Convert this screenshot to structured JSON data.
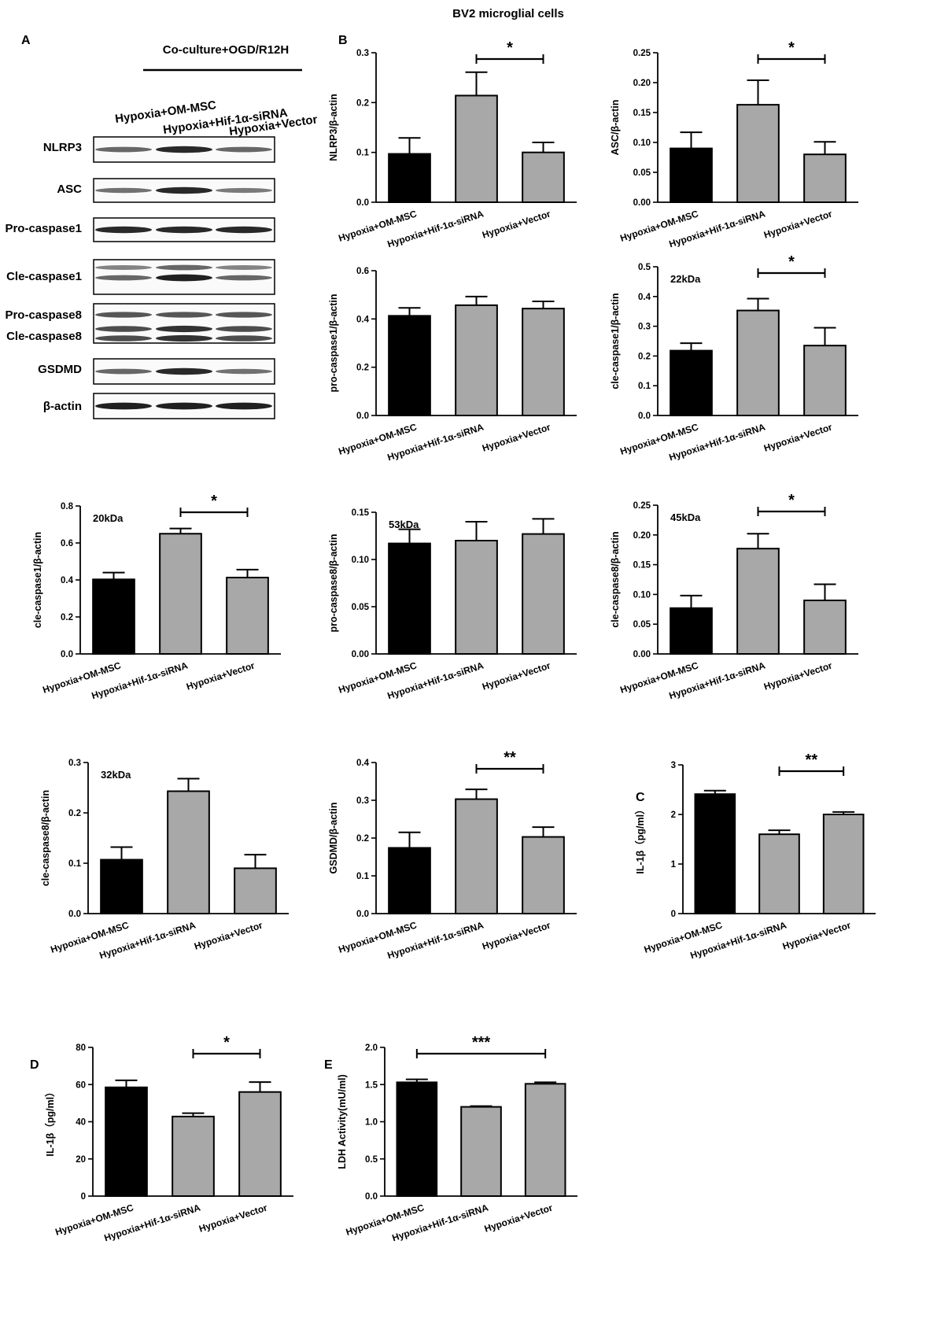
{
  "figure_title": "BV2 microglial cells",
  "panel_letters": {
    "A": "A",
    "B": "B",
    "C": "C",
    "D": "D",
    "E": "E"
  },
  "blot": {
    "condition_label": "Co-culture+OGD/R12H",
    "lanes": [
      "Hypoxia+OM-MSC",
      "Hypoxia+Hif-1α-siRNA",
      "Hypoxia+Vector"
    ],
    "rows": [
      {
        "label": "NLRP3",
        "bands": [
          [
            0.55,
            0.9,
            0.55
          ]
        ]
      },
      {
        "label": "ASC",
        "bands": [
          [
            0.5,
            0.9,
            0.45
          ]
        ]
      },
      {
        "label": "Pro-caspase1",
        "bands": [
          [
            0.9,
            0.9,
            0.9
          ]
        ]
      },
      {
        "label": "Cle-caspase1",
        "bands": [
          [
            0.4,
            0.55,
            0.4
          ],
          [
            0.55,
            0.95,
            0.55
          ]
        ]
      },
      {
        "label": "Pro-caspase8",
        "bands": [
          [
            0.65,
            0.65,
            0.65
          ],
          [
            0.35,
            0.4,
            0.4
          ]
        ]
      },
      {
        "label": "Cle-caspase8",
        "bands": [
          [
            0.7,
            0.85,
            0.7
          ]
        ]
      },
      {
        "label": "GSDMD",
        "bands": [
          [
            0.55,
            0.9,
            0.5
          ]
        ]
      },
      {
        "label": "β-actin",
        "bands": [
          [
            0.95,
            0.95,
            0.95
          ]
        ]
      }
    ]
  },
  "colors": {
    "bar1": "#000000",
    "bar_other": "#a8a8a8",
    "axis": "#000000"
  },
  "chart_data": [
    {
      "id": "nlrp3",
      "type": "bar",
      "panel": "B",
      "categories": [
        "Hypoxia+OM-MSC",
        "Hypoxia+Hif-1α-siRNA",
        "Hypoxia+Vector"
      ],
      "values": [
        0.097,
        0.214,
        0.1
      ],
      "errors": [
        0.032,
        0.047,
        0.02
      ],
      "ylabel": "NLRP3/β-actin",
      "ylim": [
        0,
        0.3
      ],
      "yticks": [
        "0.0",
        "0.1",
        "0.2",
        "0.3"
      ],
      "annotation": "",
      "significance": {
        "label": "*",
        "from": 1,
        "to": 2
      }
    },
    {
      "id": "asc",
      "type": "bar",
      "categories": [
        "Hypoxia+OM-MSC",
        "Hypoxia+Hif-1α-siRNA",
        "Hypoxia+Vector"
      ],
      "values": [
        0.09,
        0.163,
        0.08
      ],
      "errors": [
        0.027,
        0.041,
        0.021
      ],
      "ylabel": "ASC/β-actin",
      "ylim": [
        0,
        0.25
      ],
      "yticks": [
        "0.00",
        "0.05",
        "0.10",
        "0.15",
        "0.20",
        "0.25"
      ],
      "annotation": "",
      "significance": {
        "label": "*",
        "from": 1,
        "to": 2
      }
    },
    {
      "id": "procasp1",
      "type": "bar",
      "categories": [
        "Hypoxia+OM-MSC",
        "Hypoxia+Hif-1α-siRNA",
        "Hypoxia+Vector"
      ],
      "values": [
        0.413,
        0.457,
        0.443
      ],
      "errors": [
        0.033,
        0.036,
        0.03
      ],
      "ylabel": "pro-caspase1/β-actin",
      "ylim": [
        0,
        0.6
      ],
      "yticks": [
        "0.0",
        "0.2",
        "0.4",
        "0.6"
      ],
      "annotation": "",
      "significance": null
    },
    {
      "id": "clecasp1_22",
      "type": "bar",
      "categories": [
        "Hypoxia+OM-MSC",
        "Hypoxia+Hif-1α-siRNA",
        "Hypoxia+Vector"
      ],
      "values": [
        0.218,
        0.353,
        0.235
      ],
      "errors": [
        0.025,
        0.04,
        0.06
      ],
      "ylabel": "cle-caspase1/β-actin",
      "ylim": [
        0,
        0.5
      ],
      "yticks": [
        "0.0",
        "0.1",
        "0.2",
        "0.3",
        "0.4",
        "0.5"
      ],
      "annotation": "22kDa",
      "significance": {
        "label": "*",
        "from": 1,
        "to": 2
      }
    },
    {
      "id": "clecasp1_20",
      "type": "bar",
      "categories": [
        "Hypoxia+OM-MSC",
        "Hypoxia+Hif-1α-siRNA",
        "Hypoxia+Vector"
      ],
      "values": [
        0.403,
        0.65,
        0.413
      ],
      "errors": [
        0.037,
        0.028,
        0.043
      ],
      "ylabel": "cle-caspase1/β-actin",
      "ylim": [
        0,
        0.8
      ],
      "yticks": [
        "0.0",
        "0.2",
        "0.4",
        "0.6",
        "0.8"
      ],
      "annotation": "20kDa",
      "significance": {
        "label": "*",
        "from": 1,
        "to": 2
      }
    },
    {
      "id": "procasp8",
      "type": "bar",
      "categories": [
        "Hypoxia+OM-MSC",
        "Hypoxia+Hif-1α-siRNA",
        "Hypoxia+Vector"
      ],
      "values": [
        0.117,
        0.12,
        0.127
      ],
      "errors": [
        0.015,
        0.02,
        0.016
      ],
      "ylabel": "pro-caspase8/β-actin",
      "ylim": [
        0,
        0.15
      ],
      "yticks": [
        "0.00",
        "0.05",
        "0.10",
        "0.15"
      ],
      "annotation": "53kDa",
      "significance": null
    },
    {
      "id": "clecasp8_45",
      "type": "bar",
      "categories": [
        "Hypoxia+OM-MSC",
        "Hypoxia+Hif-1α-siRNA",
        "Hypoxia+Vector"
      ],
      "values": [
        0.077,
        0.177,
        0.09
      ],
      "errors": [
        0.021,
        0.025,
        0.027
      ],
      "ylabel": "cle-caspase8/β-actin",
      "ylim": [
        0,
        0.25
      ],
      "yticks": [
        "0.00",
        "0.05",
        "0.10",
        "0.15",
        "0.20",
        "0.25"
      ],
      "annotation": "45kDa",
      "significance": {
        "label": "*",
        "from": 1,
        "to": 2
      }
    },
    {
      "id": "clecasp8_32",
      "type": "bar",
      "categories": [
        "Hypoxia+OM-MSC",
        "Hypoxia+Hif-1α-siRNA",
        "Hypoxia+Vector"
      ],
      "values": [
        0.107,
        0.243,
        0.09
      ],
      "errors": [
        0.025,
        0.025,
        0.027
      ],
      "ylabel": "cle-caspase8/β-actin",
      "ylim": [
        0,
        0.3
      ],
      "yticks": [
        "0.0",
        "0.1",
        "0.2",
        "0.3"
      ],
      "annotation": "32kDa",
      "significance": null
    },
    {
      "id": "gsdmd",
      "type": "bar",
      "categories": [
        "Hypoxia+OM-MSC",
        "Hypoxia+Hif-1α-siRNA",
        "Hypoxia+Vector"
      ],
      "values": [
        0.174,
        0.303,
        0.203
      ],
      "errors": [
        0.041,
        0.026,
        0.026
      ],
      "ylabel": "GSDMD/β-actin",
      "ylim": [
        0,
        0.4
      ],
      "yticks": [
        "0.0",
        "0.1",
        "0.2",
        "0.3",
        "0.4"
      ],
      "annotation": "",
      "significance": {
        "label": "**",
        "from": 1,
        "to": 2
      }
    },
    {
      "id": "il1b_c",
      "type": "bar",
      "panel": "C",
      "categories": [
        "Hypoxia+OM-MSC",
        "Hypoxia+Hif-1α-siRNA",
        "Hypoxia+Vector"
      ],
      "values": [
        2.41,
        1.6,
        2.0
      ],
      "errors": [
        0.07,
        0.08,
        0.05
      ],
      "ylabel": "IL-1β（pg/ml）",
      "ylim": [
        0,
        3
      ],
      "yticks": [
        "0",
        "1",
        "2",
        "3"
      ],
      "annotation": "",
      "significance": {
        "label": "**",
        "from": 1,
        "to": 2
      }
    },
    {
      "id": "il1b_d",
      "type": "bar",
      "panel": "D",
      "categories": [
        "Hypoxia+OM-MSC",
        "Hypoxia+Hif-1α-siRNA",
        "Hypoxia+Vector"
      ],
      "values": [
        58.5,
        42.8,
        56.0
      ],
      "errors": [
        3.8,
        1.8,
        5.3
      ],
      "ylabel": "IL-1β（pg/ml）",
      "ylim": [
        0,
        80
      ],
      "yticks": [
        "0",
        "20",
        "40",
        "60",
        "80"
      ],
      "annotation": "",
      "significance": {
        "label": "*",
        "from": 1,
        "to": 2
      }
    },
    {
      "id": "ldh",
      "type": "bar",
      "panel": "E",
      "categories": [
        "Hypoxia+OM-MSC",
        "Hypoxia+Hif-1α-siRNA",
        "Hypoxia+Vector"
      ],
      "values": [
        1.53,
        1.2,
        1.51
      ],
      "errors": [
        0.04,
        0.01,
        0.02
      ],
      "ylabel": "LDH Activity(mU/ml)",
      "ylim": [
        0,
        2.0
      ],
      "yticks": [
        "0.0",
        "0.5",
        "1.0",
        "1.5",
        "2.0"
      ],
      "annotation": "",
      "significance": {
        "label": "***",
        "from": 0,
        "to": 2
      }
    }
  ]
}
